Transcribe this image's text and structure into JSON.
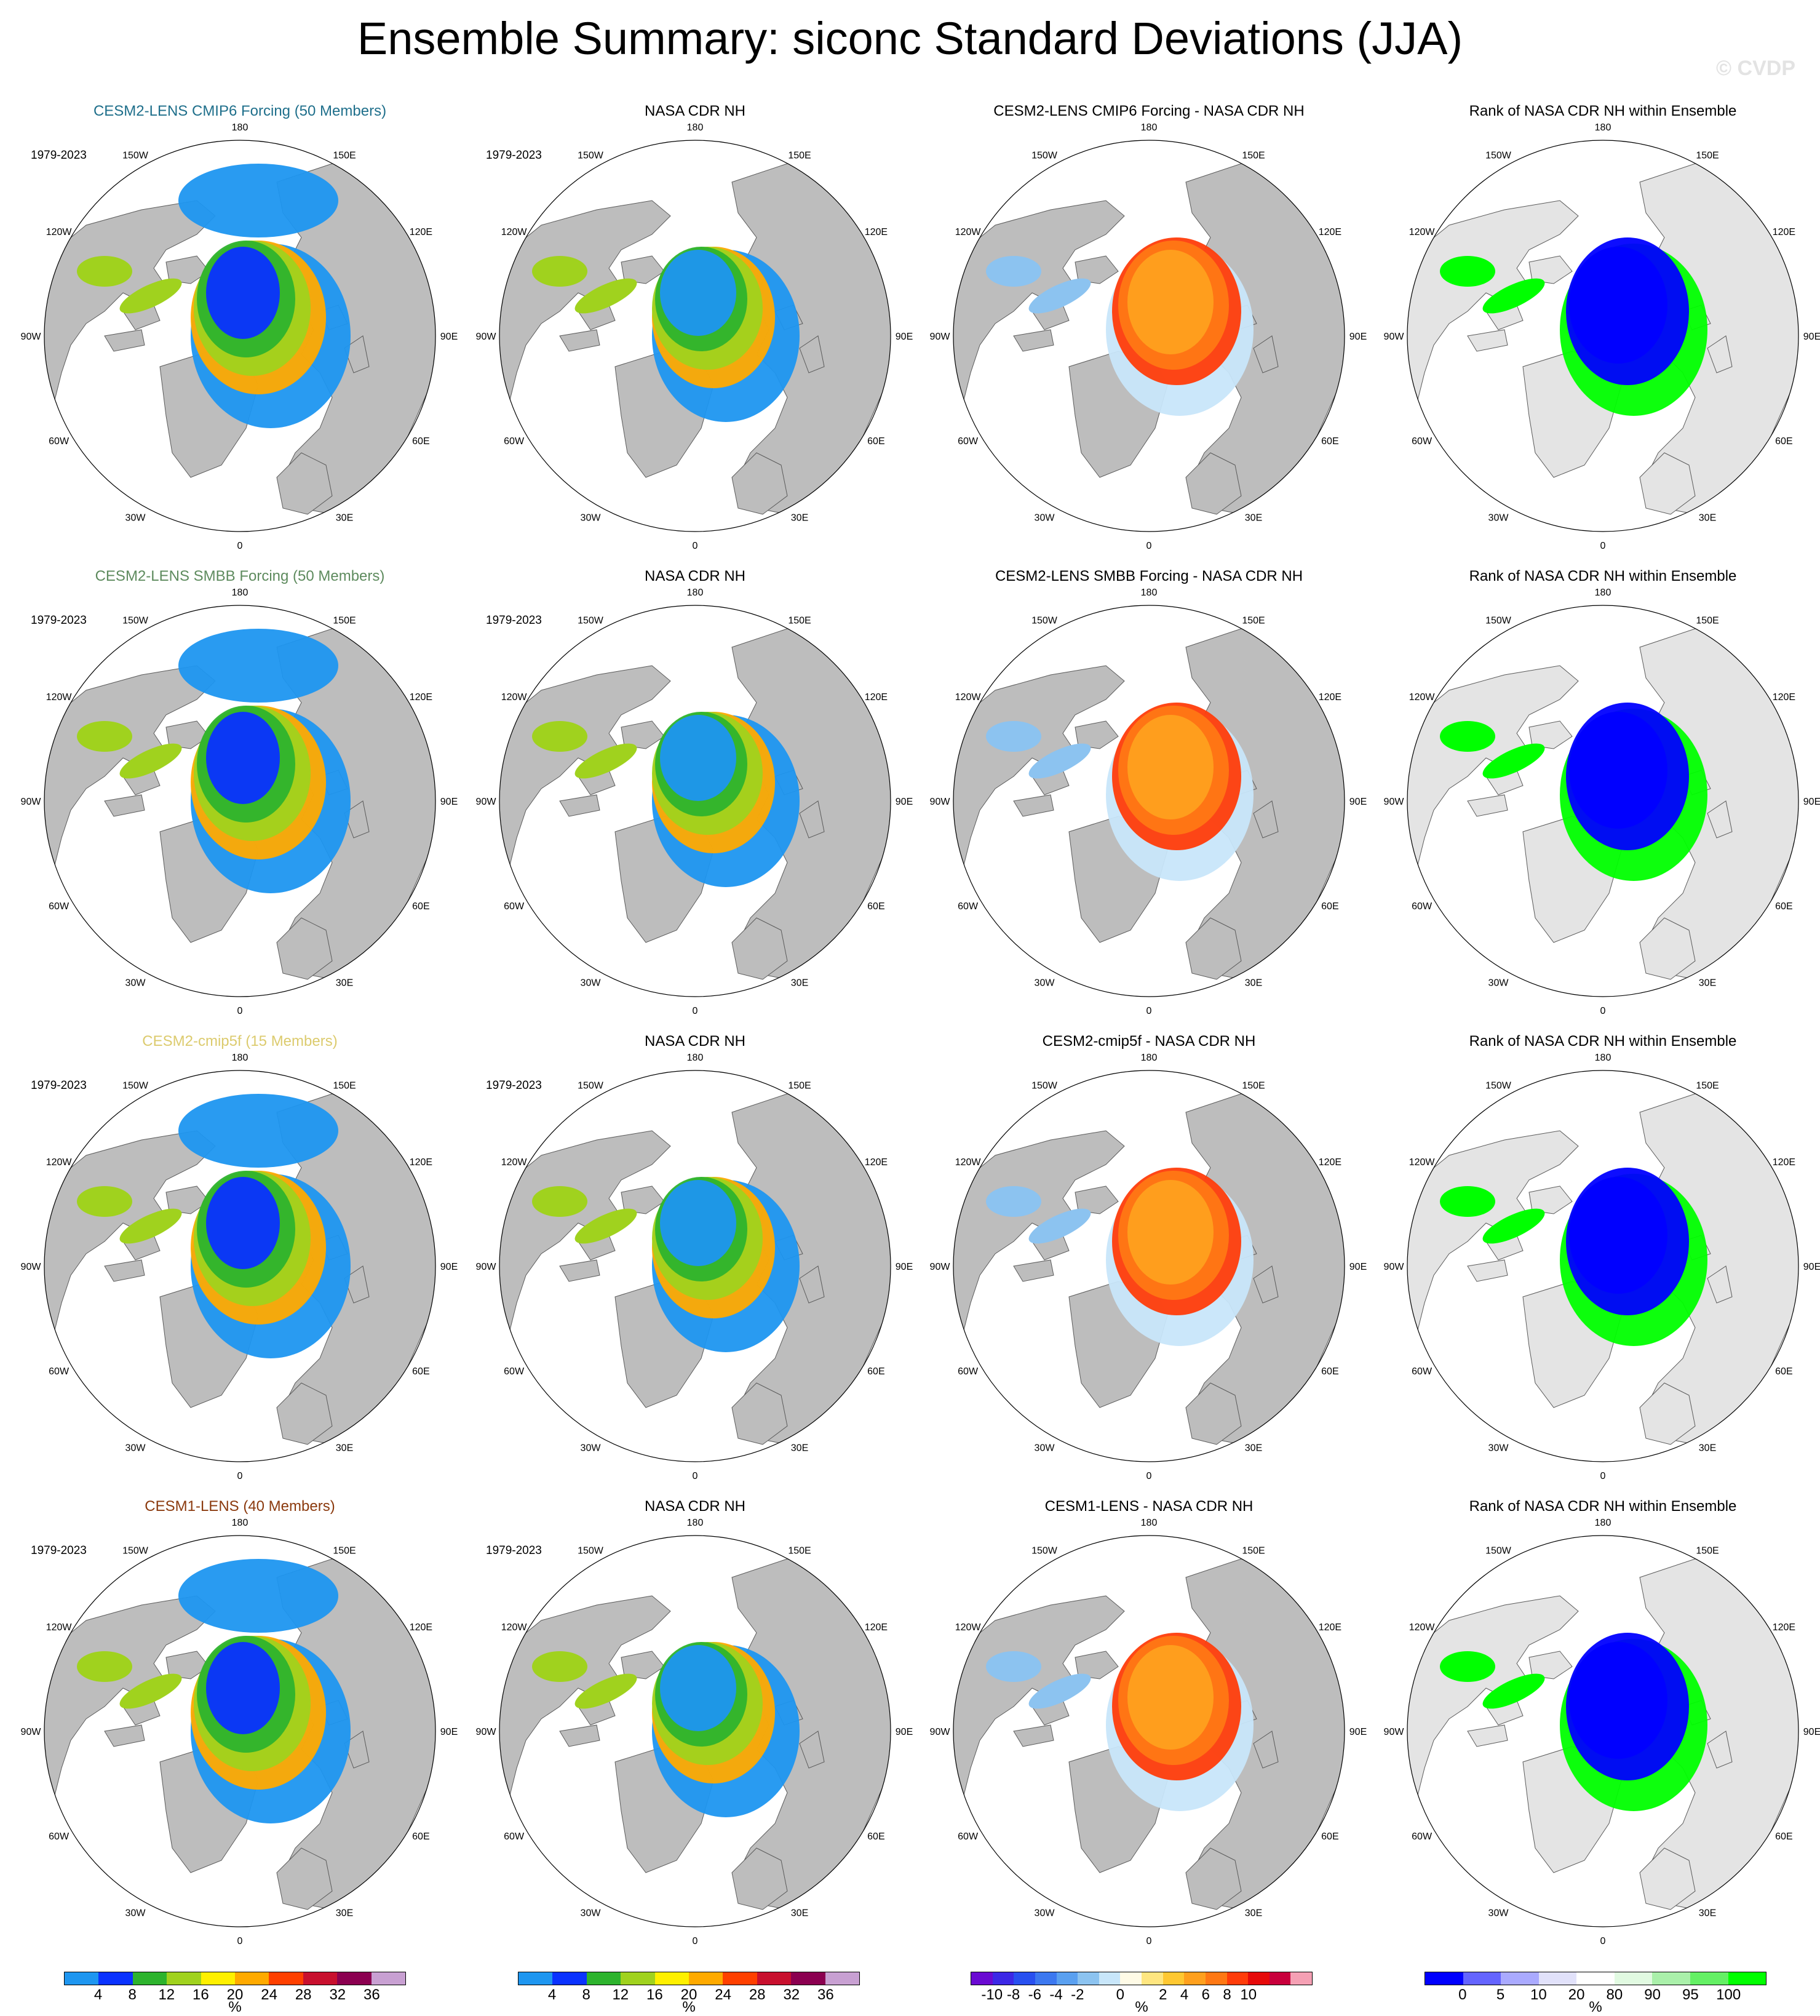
{
  "title": "Ensemble Summary: siconc Standard Deviations (JJA)",
  "watermark": "© CVDP",
  "colors": {
    "land": "#bdbdbd",
    "ocean": "#ffffff",
    "rank_land": "#e4e4e4",
    "title_row1": "#1f6f8b",
    "title_row2": "#5e8b5e",
    "title_row3": "#dccb6e",
    "title_row4": "#8b3a0e"
  },
  "lon_labels": [
    "180",
    "150E",
    "120E",
    "90E",
    "60E",
    "30E",
    "0",
    "30W",
    "60W",
    "90W",
    "120W",
    "150W"
  ],
  "rows": [
    {
      "ensemble_title": "CESM2-LENS CMIP6 Forcing (50 Members)",
      "title_color": "#1f6f8b",
      "period": "1979-2023",
      "obs_title": "NASA CDR NH",
      "obs_period": "1979-2023",
      "diff_title": "CESM2-LENS CMIP6 Forcing - NASA CDR NH",
      "rank_title": "Rank of NASA CDR NH within Ensemble"
    },
    {
      "ensemble_title": "CESM2-LENS SMBB Forcing (50 Members)",
      "title_color": "#5e8b5e",
      "period": "1979-2023",
      "obs_title": "NASA CDR NH",
      "obs_period": "1979-2023",
      "diff_title": "CESM2-LENS SMBB Forcing - NASA CDR NH",
      "rank_title": "Rank of NASA CDR NH within Ensemble"
    },
    {
      "ensemble_title": "CESM2-cmip5f (15 Members)",
      "title_color": "#dccb6e",
      "period": "1979-2023",
      "obs_title": "NASA CDR NH",
      "obs_period": "1979-2023",
      "diff_title": "CESM2-cmip5f - NASA CDR NH",
      "rank_title": "Rank of NASA CDR NH within Ensemble"
    },
    {
      "ensemble_title": "CESM1-LENS (40 Members)",
      "title_color": "#8b3a0e",
      "period": "1979-2023",
      "obs_title": "NASA CDR NH",
      "obs_period": "1979-2023",
      "diff_title": "CESM1-LENS - NASA CDR NH",
      "rank_title": "Rank of NASA CDR NH within Ensemble"
    }
  ],
  "colorbars": {
    "std": {
      "unit": "%",
      "ticks": [
        "4",
        "8",
        "12",
        "16",
        "20",
        "24",
        "28",
        "32",
        "36"
      ],
      "colors": [
        "#1e96f0",
        "#0a32ff",
        "#2db32d",
        "#a0d21e",
        "#fff000",
        "#ffaa00",
        "#ff4000",
        "#c8102e",
        "#8b0050",
        "#c8a0d2"
      ]
    },
    "diff": {
      "unit": "%",
      "ticks": [
        "-10",
        "-8",
        "-6",
        "-4",
        "-2",
        "0",
        "2",
        "4",
        "6",
        "8",
        "10"
      ],
      "colors": [
        "#6a0ad2",
        "#3c28e6",
        "#2850f0",
        "#3c78f0",
        "#5aa0f0",
        "#8cc3f0",
        "#c8e6fa",
        "#fffbe6",
        "#ffe680",
        "#ffc832",
        "#ffa01e",
        "#ff7814",
        "#ff3c0a",
        "#e60a0a",
        "#c8003c",
        "#f5a0b4"
      ]
    },
    "rank": {
      "unit": "%",
      "ticks": [
        "0",
        "5",
        "10",
        "20",
        "80",
        "90",
        "95",
        "100"
      ],
      "colors": [
        "#0000ff",
        "#6464ff",
        "#aaaaff",
        "#e1e1fa",
        "#ffffff",
        "#e1fae1",
        "#aaf0aa",
        "#64f064",
        "#00ff00"
      ]
    }
  },
  "chart_data": {
    "type": "heatmap",
    "projection": "north-polar-stereographic",
    "variable": "siconc",
    "season": "JJA"
  }
}
